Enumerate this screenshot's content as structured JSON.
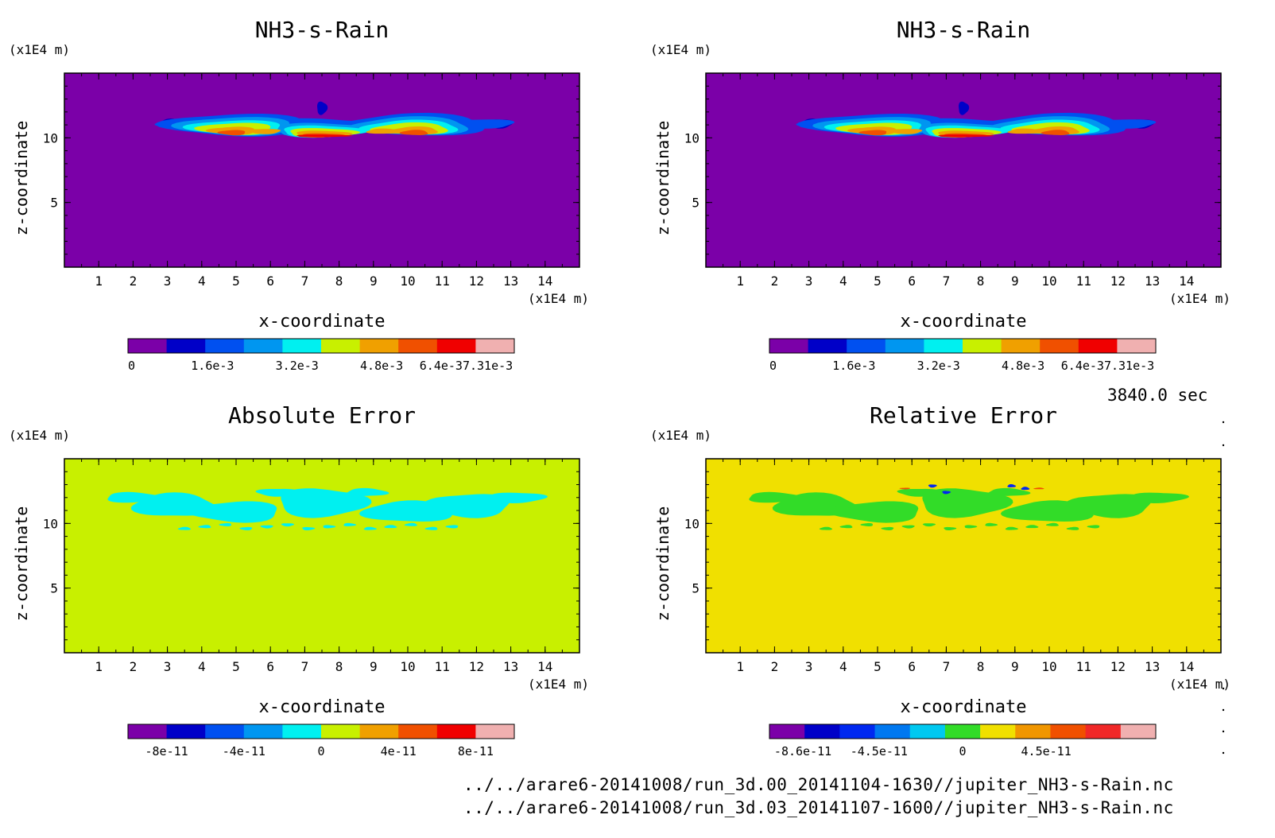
{
  "time_label": "3840.0 sec",
  "file_paths": [
    "../../arare6-20141008/run_3d.00_20141104-1630//jupiter_NH3-s-Rain.nc",
    "../../arare6-20141008/run_3d.03_20141107-1600//jupiter_NH3-s-Rain.nc"
  ],
  "chart_data": [
    {
      "type": "heatmap",
      "title": "NH3-s-Rain",
      "xlabel": "x-coordinate",
      "ylabel": "z-coordinate",
      "x_unit": "(x1E4 m)",
      "y_unit": "(x1E4 m)",
      "xlim": [
        0,
        15
      ],
      "ylim": [
        0,
        15
      ],
      "x_ticks": [
        "1",
        "2",
        "3",
        "4",
        "5",
        "6",
        "7",
        "8",
        "9",
        "10",
        "11",
        "12",
        "13",
        "14"
      ],
      "y_ticks": [
        "5",
        "10"
      ],
      "background_color": "#7b00a8",
      "colorbar": {
        "colors": [
          "#7b00a8",
          "#0000c8",
          "#0050f0",
          "#0096f0",
          "#00f0f0",
          "#c8f000",
          "#f0a000",
          "#f05000",
          "#f00000",
          "#f0b0b0"
        ],
        "labels": [
          "0",
          "1.6e-3",
          "3.2e-3",
          "4.8e-3",
          "6.4e-37.31e-3"
        ],
        "min": 0,
        "max": 0.00731
      }
    },
    {
      "type": "heatmap",
      "title": "NH3-s-Rain",
      "xlabel": "x-coordinate",
      "ylabel": "z-coordinate",
      "x_unit": "(x1E4 m)",
      "y_unit": "(x1E4 m)",
      "xlim": [
        0,
        15
      ],
      "ylim": [
        0,
        15
      ],
      "x_ticks": [
        "1",
        "2",
        "3",
        "4",
        "5",
        "6",
        "7",
        "8",
        "9",
        "10",
        "11",
        "12",
        "13",
        "14"
      ],
      "y_ticks": [
        "5",
        "10"
      ],
      "background_color": "#7b00a8",
      "colorbar": {
        "colors": [
          "#7b00a8",
          "#0000c8",
          "#0050f0",
          "#0096f0",
          "#00f0f0",
          "#c8f000",
          "#f0a000",
          "#f05000",
          "#f00000",
          "#f0b0b0"
        ],
        "labels": [
          "0",
          "1.6e-3",
          "3.2e-3",
          "4.8e-3",
          "6.4e-37.31e-3"
        ],
        "min": 0,
        "max": 0.00731
      }
    },
    {
      "type": "heatmap",
      "title": "Absolute Error",
      "xlabel": "x-coordinate",
      "ylabel": "z-coordinate",
      "x_unit": "(x1E4 m)",
      "y_unit": "(x1E4 m)",
      "xlim": [
        0,
        15
      ],
      "ylim": [
        0,
        15
      ],
      "x_ticks": [
        "1",
        "2",
        "3",
        "4",
        "5",
        "6",
        "7",
        "8",
        "9",
        "10",
        "11",
        "12",
        "13",
        "14"
      ],
      "y_ticks": [
        "5",
        "10"
      ],
      "background_color": "#c8f000",
      "colorbar": {
        "colors": [
          "#7b00a8",
          "#0000c8",
          "#0050f0",
          "#0096f0",
          "#00f0f0",
          "#c8f000",
          "#f0a000",
          "#f05000",
          "#f00000",
          "#f0b0b0"
        ],
        "labels": [
          "-8e-11",
          "-4e-11",
          "0",
          "4e-11",
          "8e-11"
        ],
        "min": -1e-10,
        "max": 1e-10
      }
    },
    {
      "type": "heatmap",
      "title": "Relative Error",
      "xlabel": "x-coordinate",
      "ylabel": "z-coordinate",
      "x_unit": "(x1E4 m)",
      "y_unit": "(x1E4 m)",
      "xlim": [
        0,
        15
      ],
      "ylim": [
        0,
        15
      ],
      "x_ticks": [
        "1",
        "2",
        "3",
        "4",
        "5",
        "6",
        "7",
        "8",
        "9",
        "10",
        "11",
        "12",
        "13",
        "14"
      ],
      "y_ticks": [
        "5",
        "10"
      ],
      "background_color": "#f0e000",
      "colorbar": {
        "colors": [
          "#7b00a8",
          "#0000c8",
          "#0028f0",
          "#0078f0",
          "#00c8f0",
          "#32dc28",
          "#f0e000",
          "#f09600",
          "#f05000",
          "#f02828",
          "#f0b0b0"
        ],
        "labels": [
          "-8.6e-11",
          "-4.5e-11",
          "0",
          "4.5e-11"
        ],
        "min": -1.04e-10,
        "max": 1.04e-10
      }
    }
  ]
}
